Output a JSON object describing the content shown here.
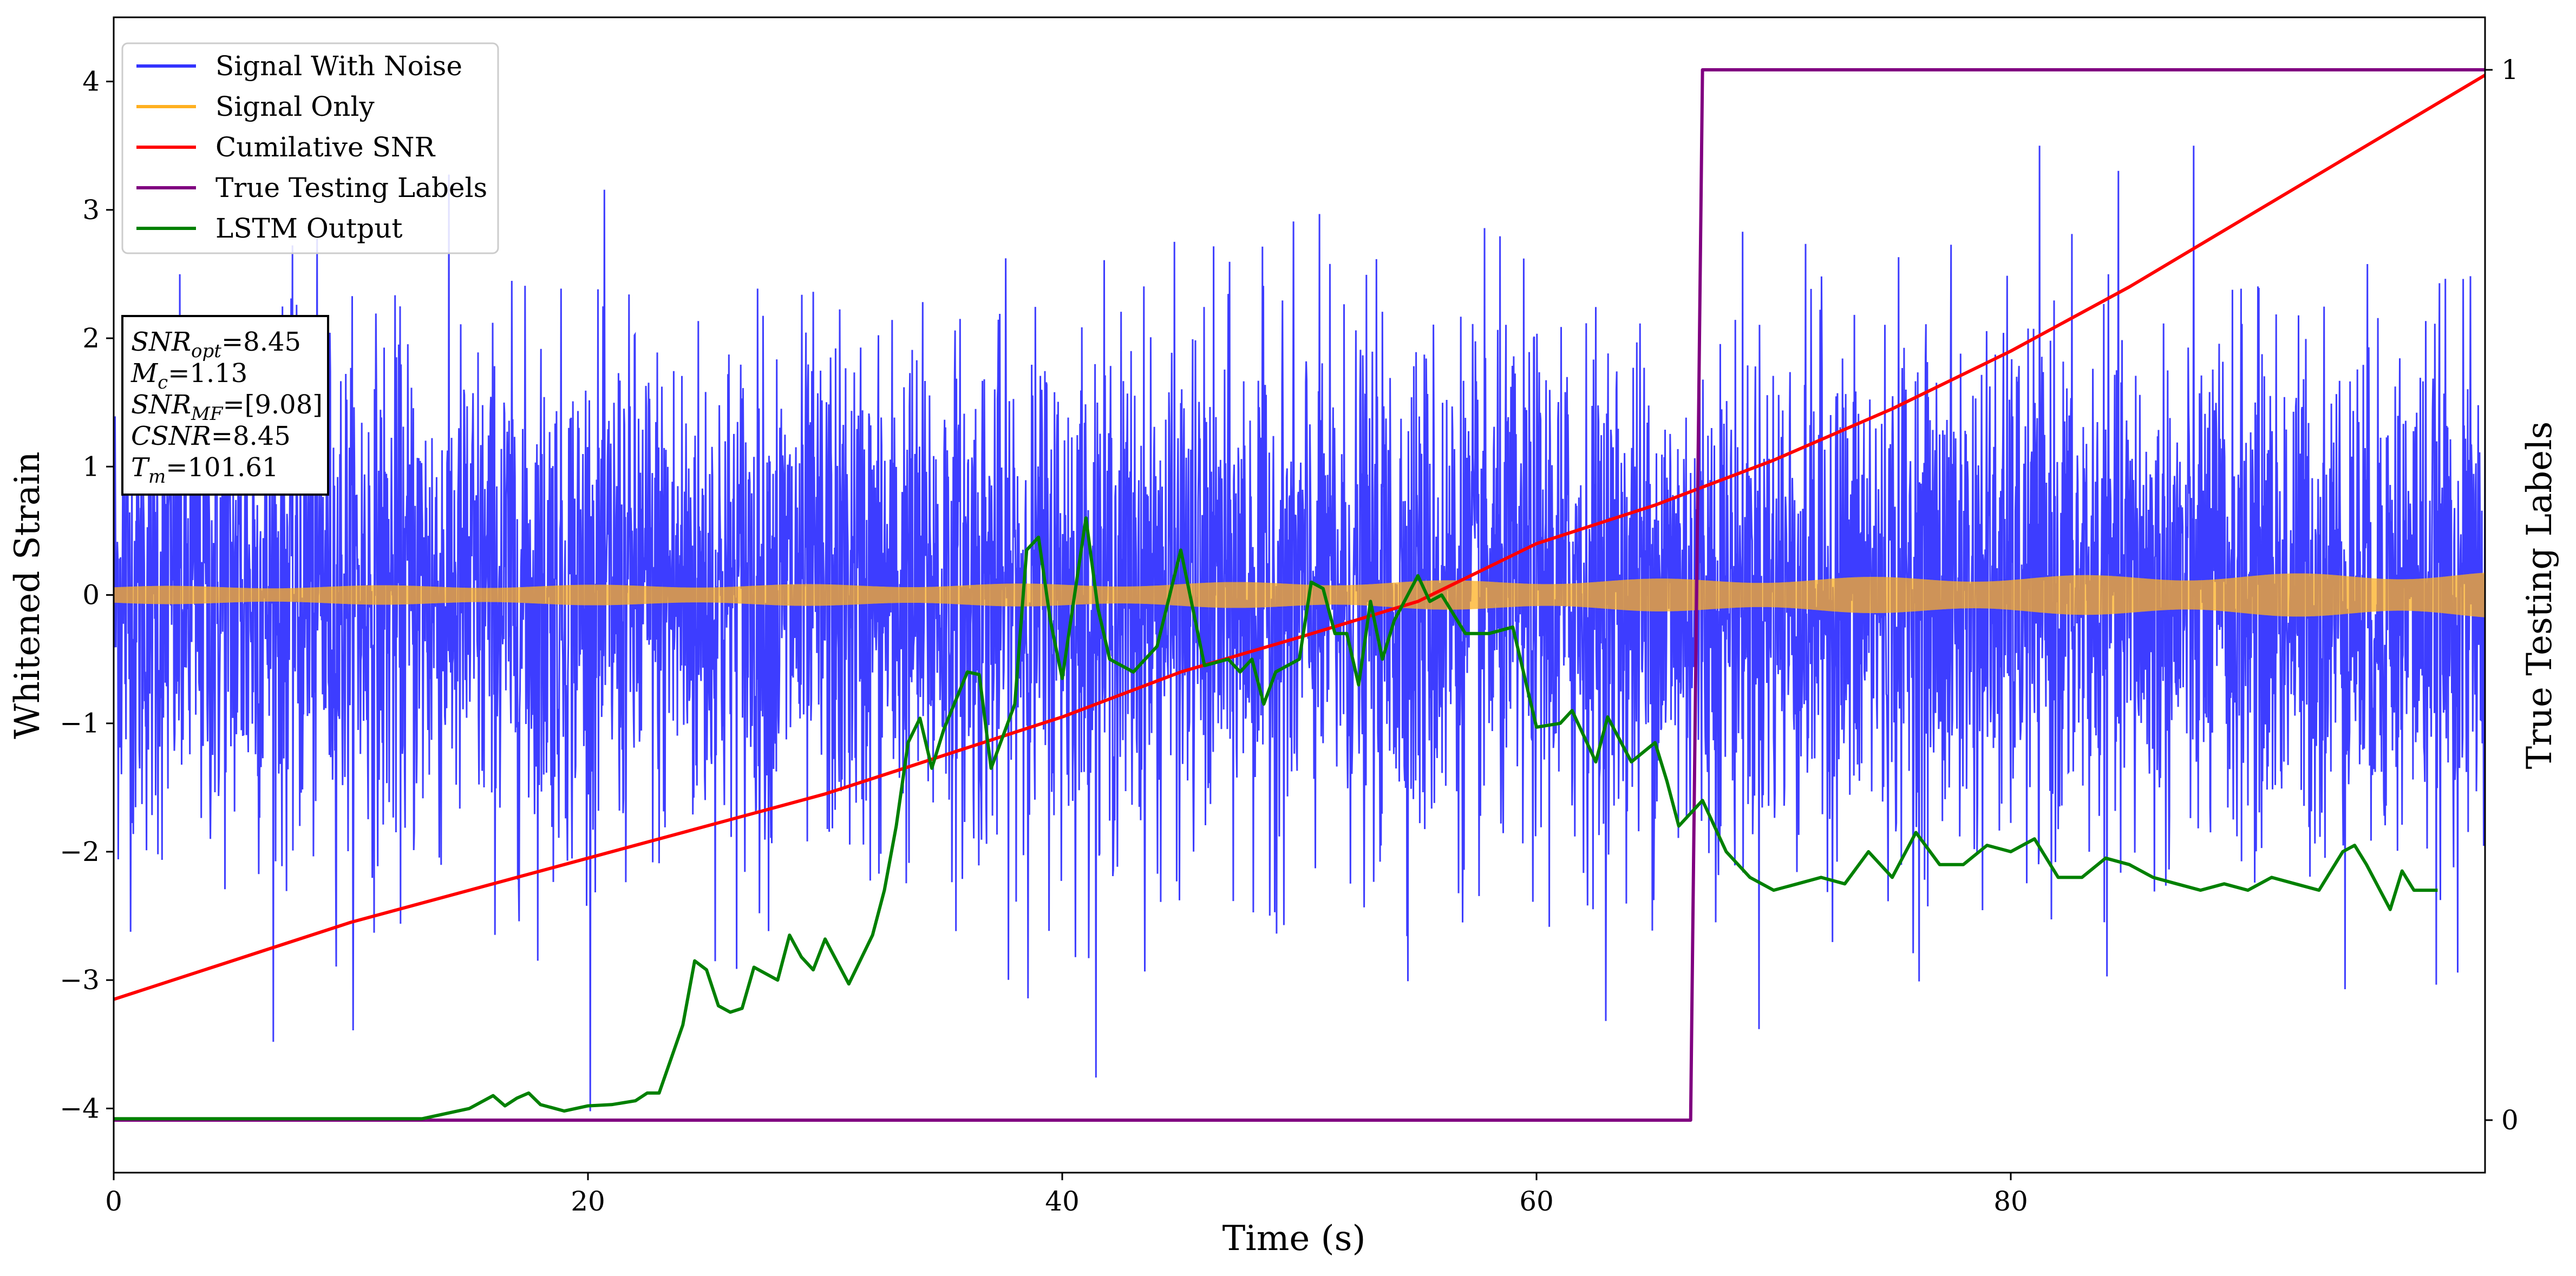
{
  "chart_data": {
    "type": "line",
    "xlabel": "Time (s)",
    "ylabel": "Whitened Strain",
    "y2label": "True Testing Labels",
    "xlim": [
      0,
      100
    ],
    "ylim": [
      -4.5,
      4.5
    ],
    "y2lim": [
      -0.05,
      1.05
    ],
    "x_ticks": [
      0,
      20,
      40,
      60,
      80
    ],
    "y_ticks": [
      -4,
      -3,
      -2,
      -1,
      0,
      1,
      2,
      3,
      4
    ],
    "y2_ticks": [
      0,
      1
    ],
    "grid": false,
    "legend_position": "upper-left",
    "series": [
      {
        "name": "Signal With Noise",
        "color": "#3333ff",
        "axis": "left",
        "style": "dense-noise",
        "mean": 0.0,
        "std": 1.0,
        "ymin": -4.1,
        "ymax": 3.5
      },
      {
        "name": "Signal Only",
        "color": "#ffb020",
        "axis": "left",
        "style": "chirp-band",
        "amplitude_points": [
          [
            0,
            0.07
          ],
          [
            40,
            0.09
          ],
          [
            60,
            0.12
          ],
          [
            80,
            0.15
          ],
          [
            100,
            0.18
          ]
        ]
      },
      {
        "name": "Cumilative SNR",
        "color": "#ff0000",
        "axis": "left",
        "points": [
          [
            0,
            -3.15
          ],
          [
            5,
            -2.85
          ],
          [
            10,
            -2.55
          ],
          [
            15,
            -2.3
          ],
          [
            20,
            -2.05
          ],
          [
            25,
            -1.8
          ],
          [
            30,
            -1.55
          ],
          [
            35,
            -1.25
          ],
          [
            40,
            -0.95
          ],
          [
            45,
            -0.6
          ],
          [
            50,
            -0.33
          ],
          [
            55,
            -0.05
          ],
          [
            60,
            0.4
          ],
          [
            65,
            0.7
          ],
          [
            70,
            1.05
          ],
          [
            75,
            1.45
          ],
          [
            80,
            1.9
          ],
          [
            85,
            2.4
          ],
          [
            90,
            2.95
          ],
          [
            95,
            3.5
          ],
          [
            100,
            4.05
          ]
        ]
      },
      {
        "name": "True Testing Labels",
        "color": "#800080",
        "axis": "right",
        "points": [
          [
            0,
            0
          ],
          [
            66.5,
            0
          ],
          [
            67,
            1
          ],
          [
            100,
            1
          ]
        ]
      },
      {
        "name": "LSTM Output",
        "color": "#008000",
        "axis": "left",
        "points": [
          [
            0,
            -4.08
          ],
          [
            13,
            -4.08
          ],
          [
            15,
            -4.0
          ],
          [
            16,
            -3.9
          ],
          [
            16.5,
            -3.98
          ],
          [
            17,
            -3.92
          ],
          [
            17.5,
            -3.88
          ],
          [
            18,
            -3.97
          ],
          [
            19,
            -4.02
          ],
          [
            20,
            -3.98
          ],
          [
            21,
            -3.97
          ],
          [
            22,
            -3.94
          ],
          [
            22.5,
            -3.88
          ],
          [
            23,
            -3.88
          ],
          [
            24,
            -3.35
          ],
          [
            24.5,
            -2.85
          ],
          [
            25,
            -2.92
          ],
          [
            25.5,
            -3.2
          ],
          [
            26,
            -3.25
          ],
          [
            26.5,
            -3.22
          ],
          [
            27,
            -2.9
          ],
          [
            28,
            -3.0
          ],
          [
            28.5,
            -2.65
          ],
          [
            29,
            -2.82
          ],
          [
            29.5,
            -2.92
          ],
          [
            30,
            -2.68
          ],
          [
            31,
            -3.03
          ],
          [
            32,
            -2.65
          ],
          [
            32.5,
            -2.3
          ],
          [
            33,
            -1.8
          ],
          [
            33.5,
            -1.15
          ],
          [
            34,
            -0.96
          ],
          [
            34.5,
            -1.35
          ],
          [
            35,
            -1.05
          ],
          [
            36,
            -0.6
          ],
          [
            36.5,
            -0.62
          ],
          [
            37,
            -1.35
          ],
          [
            37.5,
            -1.1
          ],
          [
            38,
            -0.85
          ],
          [
            38.5,
            0.35
          ],
          [
            39,
            0.45
          ],
          [
            39.5,
            -0.2
          ],
          [
            40,
            -0.65
          ],
          [
            41,
            0.6
          ],
          [
            41.5,
            -0.1
          ],
          [
            42,
            -0.5
          ],
          [
            43,
            -0.6
          ],
          [
            44,
            -0.4
          ],
          [
            45,
            0.35
          ],
          [
            46,
            -0.55
          ],
          [
            47,
            -0.5
          ],
          [
            47.5,
            -0.6
          ],
          [
            48,
            -0.5
          ],
          [
            48.5,
            -0.85
          ],
          [
            49,
            -0.6
          ],
          [
            50,
            -0.5
          ],
          [
            50.5,
            0.1
          ],
          [
            51,
            0.05
          ],
          [
            51.5,
            -0.3
          ],
          [
            52,
            -0.3
          ],
          [
            52.5,
            -0.7
          ],
          [
            53,
            -0.05
          ],
          [
            53.5,
            -0.5
          ],
          [
            54,
            -0.2
          ],
          [
            55,
            0.15
          ],
          [
            55.5,
            -0.05
          ],
          [
            56,
            0.0
          ],
          [
            57,
            -0.3
          ],
          [
            58,
            -0.3
          ],
          [
            59,
            -0.25
          ],
          [
            60,
            -1.03
          ],
          [
            61,
            -1.0
          ],
          [
            61.5,
            -0.9
          ],
          [
            62,
            -1.1
          ],
          [
            62.5,
            -1.3
          ],
          [
            63,
            -0.95
          ],
          [
            64,
            -1.3
          ],
          [
            65,
            -1.15
          ],
          [
            65.5,
            -1.45
          ],
          [
            66,
            -1.8
          ],
          [
            67,
            -1.6
          ],
          [
            68,
            -2.0
          ],
          [
            69,
            -2.2
          ],
          [
            70,
            -2.3
          ],
          [
            71,
            -2.25
          ],
          [
            72,
            -2.2
          ],
          [
            73,
            -2.25
          ],
          [
            74,
            -2.0
          ],
          [
            75,
            -2.2
          ],
          [
            76,
            -1.85
          ],
          [
            77,
            -2.1
          ],
          [
            78,
            -2.1
          ],
          [
            79,
            -1.95
          ],
          [
            80,
            -2.0
          ],
          [
            81,
            -1.9
          ],
          [
            82,
            -2.2
          ],
          [
            83,
            -2.2
          ],
          [
            84,
            -2.05
          ],
          [
            85,
            -2.1
          ],
          [
            86,
            -2.2
          ],
          [
            87,
            -2.25
          ],
          [
            88,
            -2.3
          ],
          [
            89,
            -2.25
          ],
          [
            90,
            -2.3
          ],
          [
            91,
            -2.2
          ],
          [
            92,
            -2.25
          ],
          [
            93,
            -2.3
          ],
          [
            94,
            -2.0
          ],
          [
            94.5,
            -1.95
          ],
          [
            95,
            -2.1
          ],
          [
            96,
            -2.45
          ],
          [
            96.5,
            -2.15
          ],
          [
            97,
            -2.3
          ],
          [
            98,
            -2.3
          ]
        ]
      }
    ],
    "annotation": {
      "lines": [
        {
          "name": "SNR",
          "sub": "opt",
          "value": "=8.45"
        },
        {
          "name": "M",
          "sub": "c",
          "value": "=1.13"
        },
        {
          "name": "SNR",
          "sub": "MF",
          "value": "=[9.08]"
        },
        {
          "name": "CSNR",
          "sub": "",
          "value": "=8.45"
        },
        {
          "name": "T",
          "sub": "m",
          "value": "=101.61"
        }
      ]
    }
  }
}
